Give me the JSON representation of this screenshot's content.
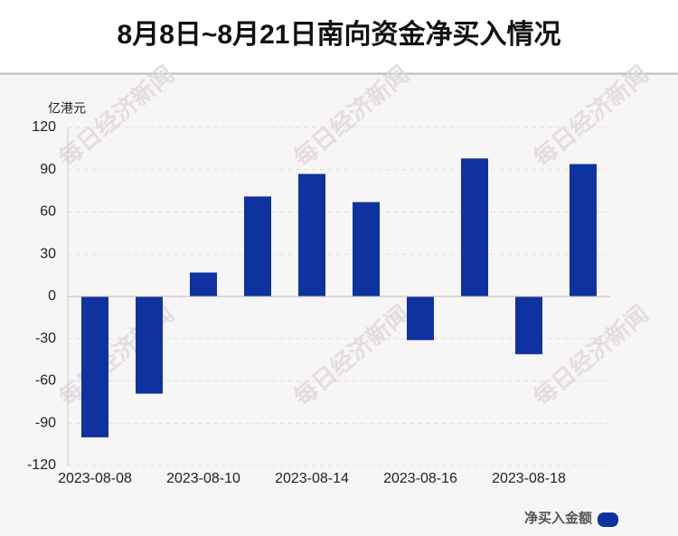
{
  "chart_data": {
    "type": "bar",
    "title": "8月8日~8月21日南向资金净买入情况",
    "y_label": "亿港元",
    "watermark": "每日经济新闻",
    "categories": [
      "2023-08-08",
      null,
      "2023-08-10",
      null,
      "2023-08-14",
      null,
      "2023-08-16",
      null,
      "2023-08-18",
      null
    ],
    "series": [
      {
        "name": "净买入金额",
        "color": "#0e33a0",
        "values": [
          -100,
          -69,
          17,
          71,
          87,
          67,
          -31,
          98,
          -41,
          94
        ]
      }
    ],
    "ylim": [
      -120,
      120
    ],
    "yticks": [
      -120,
      -90,
      -60,
      -30,
      0,
      30,
      60,
      90,
      120
    ],
    "grid": true,
    "legend": "bottom-right"
  }
}
